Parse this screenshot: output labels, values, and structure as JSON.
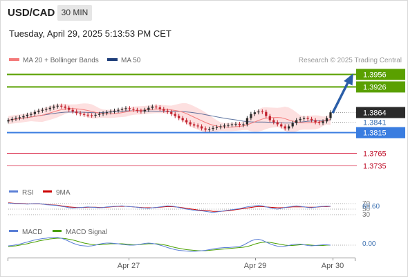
{
  "header": {
    "symbol": "USD/CAD",
    "timeframe": "30 MIN",
    "datetime": "Tuesday, April 29, 2025 5:13:53 PM CET"
  },
  "legend": {
    "bollinger": "MA 20 + Bollinger Bands",
    "ma50": "MA 50",
    "credit": "Research © 2025 Trading Central",
    "rsi": "RSI",
    "rsi_ma": "9MA",
    "macd": "MACD",
    "macd_signal": "MACD Signal"
  },
  "colors": {
    "resistance": "#5aa000",
    "support": "#3a7de0",
    "target_red": "#e0506a",
    "bollinger": "#f47a7a",
    "bollinger_fill": "#fde0e0",
    "ma50": "#1f3f7a",
    "arrow": "#2b5ea8",
    "candle_up": "#2b2b2b",
    "candle_down": "#c0202c",
    "rsi_line": "#5b7fd6",
    "rsi_ma": "#cc0000",
    "macd_line": "#5b7fd6",
    "macd_signal": "#4aa000",
    "current_price_bg": "#2b2b2b"
  },
  "chart_data": {
    "type": "candlestick",
    "timeframe": "30 MIN",
    "x_ticks": [
      "Apr 27",
      "Apr 29",
      "Apr 30"
    ],
    "ylim": [
      1.37,
      1.397
    ],
    "levels": [
      {
        "value": 1.3956,
        "label": "1.3956",
        "kind": "resistance"
      },
      {
        "value": 1.3926,
        "label": "1.3926",
        "kind": "resistance"
      },
      {
        "value": 1.3864,
        "label": "1.3864",
        "kind": "current"
      },
      {
        "value": 1.3841,
        "label": "1.3841",
        "kind": "pivot"
      },
      {
        "value": 1.3815,
        "label": "1.3815",
        "kind": "support"
      },
      {
        "value": 1.3765,
        "label": "1.3765",
        "kind": "target"
      },
      {
        "value": 1.3735,
        "label": "1.3735",
        "kind": "target"
      }
    ],
    "close": [
      1.3845,
      1.3848,
      1.385,
      1.3852,
      1.3855,
      1.3858,
      1.386,
      1.3865,
      1.3868,
      1.387,
      1.3872,
      1.3875,
      1.3878,
      1.388,
      1.3878,
      1.3875,
      1.387,
      1.3866,
      1.3862,
      1.386,
      1.3858,
      1.3857,
      1.3856,
      1.3858,
      1.386,
      1.3862,
      1.3864,
      1.3866,
      1.3868,
      1.387,
      1.3872,
      1.3874,
      1.3872,
      1.387,
      1.3868,
      1.3866,
      1.387,
      1.3875,
      1.3878,
      1.3876,
      1.3872,
      1.3868,
      1.3865,
      1.386,
      1.3855,
      1.385,
      1.3845,
      1.384,
      1.3835,
      1.3832,
      1.383,
      1.3825,
      1.3822,
      1.3824,
      1.3826,
      1.3828,
      1.383,
      1.3832,
      1.3833,
      1.3835,
      1.3836,
      1.3833,
      1.3835,
      1.385,
      1.386,
      1.3864,
      1.3866,
      1.3865,
      1.3855,
      1.3845,
      1.384,
      1.3835,
      1.383,
      1.3825,
      1.383,
      1.3838,
      1.3845,
      1.3848,
      1.385,
      1.3848,
      1.3845,
      1.384,
      1.3838,
      1.3842,
      1.385,
      1.3864
    ],
    "ma20_current": 1.3843,
    "ma50_current": 1.385,
    "projection": {
      "from": 1.3864,
      "to": 1.3956
    },
    "rsi": {
      "levels": [
        70,
        50,
        30
      ],
      "last": 60.6,
      "label": "60.60",
      "values": [
        72,
        71,
        70,
        70,
        69,
        68,
        69,
        70,
        70,
        68,
        66,
        65,
        64,
        63,
        60,
        58,
        55,
        54,
        55,
        56,
        57,
        58,
        57,
        56,
        55,
        56,
        58,
        59,
        60,
        61,
        62,
        60,
        59,
        58,
        57,
        55,
        54,
        53,
        55,
        56,
        58,
        60,
        62,
        61,
        59,
        56,
        53,
        50,
        48,
        46,
        45,
        44,
        42,
        40,
        38,
        40,
        42,
        44,
        46,
        48,
        50,
        52,
        55,
        58,
        60,
        62,
        63,
        62,
        58,
        55,
        52,
        50,
        53,
        56,
        58,
        60,
        62,
        60,
        58,
        56,
        55,
        57,
        59,
        60,
        61,
        60.6
      ],
      "ma_values": [
        73,
        72,
        71,
        71,
        70,
        69,
        69,
        69,
        69,
        68,
        67,
        66,
        65,
        64,
        62,
        60,
        58,
        57,
        56,
        56,
        56,
        57,
        57,
        57,
        56,
        56,
        57,
        58,
        59,
        60,
        60,
        60,
        59,
        58,
        57,
        56,
        55,
        55,
        55,
        56,
        57,
        58,
        59,
        59,
        58,
        57,
        55,
        53,
        51,
        49,
        47,
        46,
        45,
        44,
        42,
        42,
        42,
        43,
        44,
        46,
        48,
        50,
        52,
        54,
        56,
        58,
        59,
        59,
        58,
        57,
        56,
        55,
        55,
        56,
        57,
        58,
        58,
        58,
        58,
        57,
        57,
        57,
        58,
        59,
        59,
        60
      ]
    },
    "macd": {
      "last": 0.0,
      "label": "0.00",
      "values": [
        -0.2,
        -0.1,
        0.1,
        0.3,
        0.6,
        0.9,
        1.2,
        1.5,
        1.7,
        1.9,
        2.0,
        2.2,
        2.3,
        2.2,
        2.0,
        1.6,
        1.1,
        0.6,
        0.2,
        -0.1,
        -0.2,
        -0.3,
        -0.2,
        0.0,
        0.3,
        0.5,
        0.6,
        0.6,
        0.5,
        0.4,
        0.2,
        0.1,
        0.0,
        0.0,
        0.1,
        0.3,
        0.5,
        0.6,
        0.5,
        0.3,
        0.0,
        -0.3,
        -0.7,
        -1.0,
        -1.3,
        -1.5,
        -1.6,
        -1.7,
        -1.8,
        -1.8,
        -1.7,
        -1.6,
        -1.5,
        -1.3,
        -1.1,
        -0.9,
        -0.8,
        -0.7,
        -0.7,
        -0.6,
        -0.5,
        -0.4,
        0.0,
        0.6,
        1.2,
        1.6,
        1.7,
        1.4,
        0.9,
        0.4,
        0.0,
        -0.3,
        -0.4,
        -0.3,
        -0.1,
        0.2,
        0.3,
        0.3,
        0.1,
        -0.1,
        -0.2,
        -0.1,
        0.0,
        0.1,
        0.1,
        0.0
      ],
      "signal": [
        -0.4,
        -0.3,
        -0.2,
        0.0,
        0.2,
        0.4,
        0.7,
        0.9,
        1.2,
        1.4,
        1.6,
        1.8,
        1.9,
        2.0,
        2.0,
        1.9,
        1.7,
        1.5,
        1.2,
        0.9,
        0.6,
        0.4,
        0.2,
        0.1,
        0.1,
        0.2,
        0.3,
        0.4,
        0.4,
        0.4,
        0.4,
        0.3,
        0.2,
        0.1,
        0.1,
        0.2,
        0.3,
        0.4,
        0.4,
        0.4,
        0.3,
        0.1,
        -0.1,
        -0.4,
        -0.7,
        -0.9,
        -1.1,
        -1.3,
        -1.4,
        -1.5,
        -1.6,
        -1.6,
        -1.6,
        -1.5,
        -1.4,
        -1.3,
        -1.2,
        -1.1,
        -1.0,
        -0.9,
        -0.8,
        -0.7,
        -0.6,
        -0.4,
        -0.1,
        0.3,
        0.6,
        0.8,
        0.9,
        0.8,
        0.6,
        0.4,
        0.2,
        0.0,
        -0.1,
        -0.1,
        0.0,
        0.1,
        0.1,
        0.1,
        0.0,
        -0.1,
        -0.1,
        -0.1,
        0.0,
        0.0
      ]
    }
  }
}
